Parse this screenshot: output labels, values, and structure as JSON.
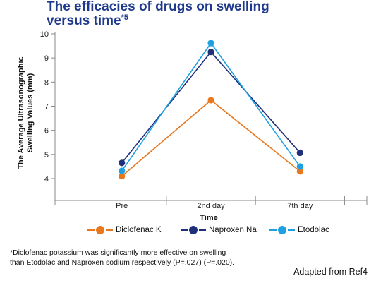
{
  "title": {
    "line1": "The efficacies of drugs on swelling",
    "line2": "versus time",
    "mark": "*5"
  },
  "chart_data": {
    "type": "line",
    "categories": [
      "Pre",
      "2nd day",
      "7th day"
    ],
    "series": [
      {
        "name": "Diclofenac K",
        "color": "#e8771e",
        "values": [
          4.1,
          7.25,
          4.3
        ]
      },
      {
        "name": "Naproxen Na",
        "color": "#1f2f7a",
        "values": [
          4.65,
          9.25,
          5.07
        ]
      },
      {
        "name": "Etodolac",
        "color": "#1da1e2",
        "values": [
          4.32,
          9.62,
          4.5
        ]
      }
    ],
    "xlabel": "Time",
    "ylabel_line1": "The Average Ultrasonographic",
    "ylabel_line2": "Swelling Values (mm)",
    "ylim": [
      4,
      10
    ],
    "yticks": [
      "4",
      "5",
      "6",
      "7",
      "8",
      "9",
      "10"
    ],
    "grid": false,
    "legend_position": "bottom"
  },
  "footnote": {
    "line1": "*Diclofenac potassium was significantly more effective on swelling",
    "line2": "than Etodolac and Naproxen sodium respectively (P=.027) (P=.020)."
  },
  "credit": "Adapted from Ref4"
}
